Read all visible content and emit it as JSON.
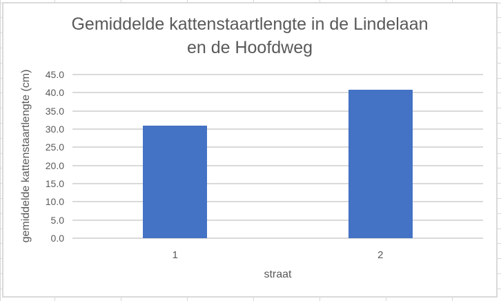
{
  "chart_data": {
    "type": "bar",
    "title": "Gemiddelde kattenstaartlengte in de Lindelaan en de Hoofdweg",
    "title_lines": [
      "Gemiddelde kattenstaartlengte in de Lindelaan",
      "en de Hoofdweg"
    ],
    "categories": [
      "1",
      "2"
    ],
    "values": [
      31.0,
      40.8
    ],
    "xlabel": "straat",
    "ylabel": "gemiddelde kattenstaartlengte (cm)",
    "ylim": [
      0,
      45
    ],
    "ytick_step": 5,
    "ytick_labels": [
      "0.0",
      "5.0",
      "10.0",
      "15.0",
      "20.0",
      "25.0",
      "30.0",
      "35.0",
      "40.0",
      "45.0"
    ],
    "grid": true,
    "legend": false,
    "bar_color": "#4472C4",
    "gridline_color": "#D9D9D9",
    "axis_line_color": "#D9D9D9",
    "text_color": "#595959",
    "chart_border_color": "#D9D9D9",
    "chart_background": "#FFFFFF"
  }
}
